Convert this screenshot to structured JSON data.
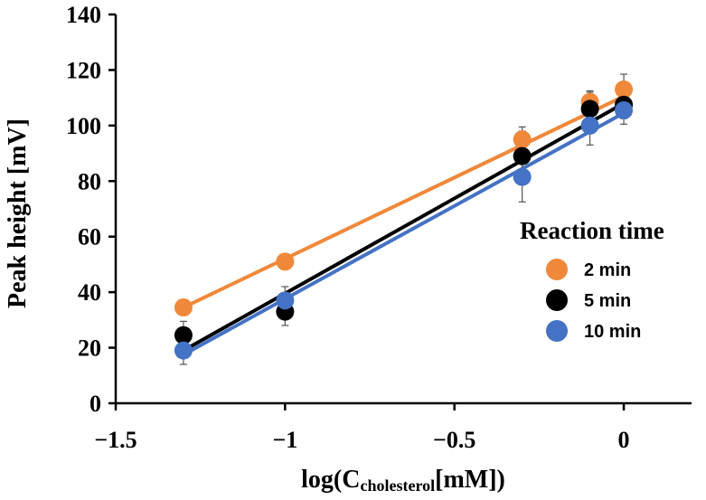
{
  "chart_data": {
    "type": "scatter",
    "xlabel": {
      "prefix": "log(C",
      "subscript": "cholesterol",
      "suffix": "[mM])"
    },
    "ylabel": "Peak height  [mV]",
    "xlim": [
      -1.5,
      0.2
    ],
    "ylim": [
      0,
      140
    ],
    "x_ticks": [
      -1.5,
      -1,
      -0.5,
      0
    ],
    "x_tick_labels": [
      "−1.5",
      "−1",
      "−0.5",
      "0"
    ],
    "y_ticks": [
      0,
      20,
      40,
      60,
      80,
      100,
      120,
      140
    ],
    "y_tick_labels": [
      "0",
      "20",
      "40",
      "60",
      "80",
      "100",
      "120",
      "140"
    ],
    "grid": false,
    "legend": {
      "title": "Reaction time",
      "position": "right"
    },
    "series": [
      {
        "name": "2 min",
        "color": "#F0883A",
        "points": [
          {
            "x": -1.3,
            "y": 34.5,
            "err": 0
          },
          {
            "x": -1.0,
            "y": 51,
            "err": 1.5
          },
          {
            "x": -0.3,
            "y": 95,
            "err": 4.5
          },
          {
            "x": -0.1,
            "y": 108.5,
            "err": 4
          },
          {
            "x": 0.0,
            "y": 113,
            "err": 5.5
          }
        ],
        "fit": [
          {
            "x": -1.3,
            "y": 34.5
          },
          {
            "x": 0.0,
            "y": 110.5
          }
        ]
      },
      {
        "name": "5 min",
        "color": "#000000",
        "points": [
          {
            "x": -1.3,
            "y": 24.5,
            "err": 5
          },
          {
            "x": -1.0,
            "y": 33,
            "err": 5
          },
          {
            "x": -0.3,
            "y": 89,
            "err": 9
          },
          {
            "x": -0.1,
            "y": 106,
            "err": 6
          },
          {
            "x": 0.0,
            "y": 107.5,
            "err": 5
          }
        ],
        "fit": [
          {
            "x": -1.3,
            "y": 19
          },
          {
            "x": 0.0,
            "y": 108
          }
        ]
      },
      {
        "name": "10 min",
        "color": "#4472C4",
        "points": [
          {
            "x": -1.3,
            "y": 19,
            "err": 5
          },
          {
            "x": -1.0,
            "y": 37,
            "err": 5
          },
          {
            "x": -0.3,
            "y": 81.5,
            "err": 9
          },
          {
            "x": -0.1,
            "y": 100,
            "err": 7
          },
          {
            "x": 0.0,
            "y": 105.5,
            "err": 5
          }
        ],
        "fit": [
          {
            "x": -1.3,
            "y": 17.5
          },
          {
            "x": 0.0,
            "y": 104.5
          }
        ]
      }
    ]
  }
}
